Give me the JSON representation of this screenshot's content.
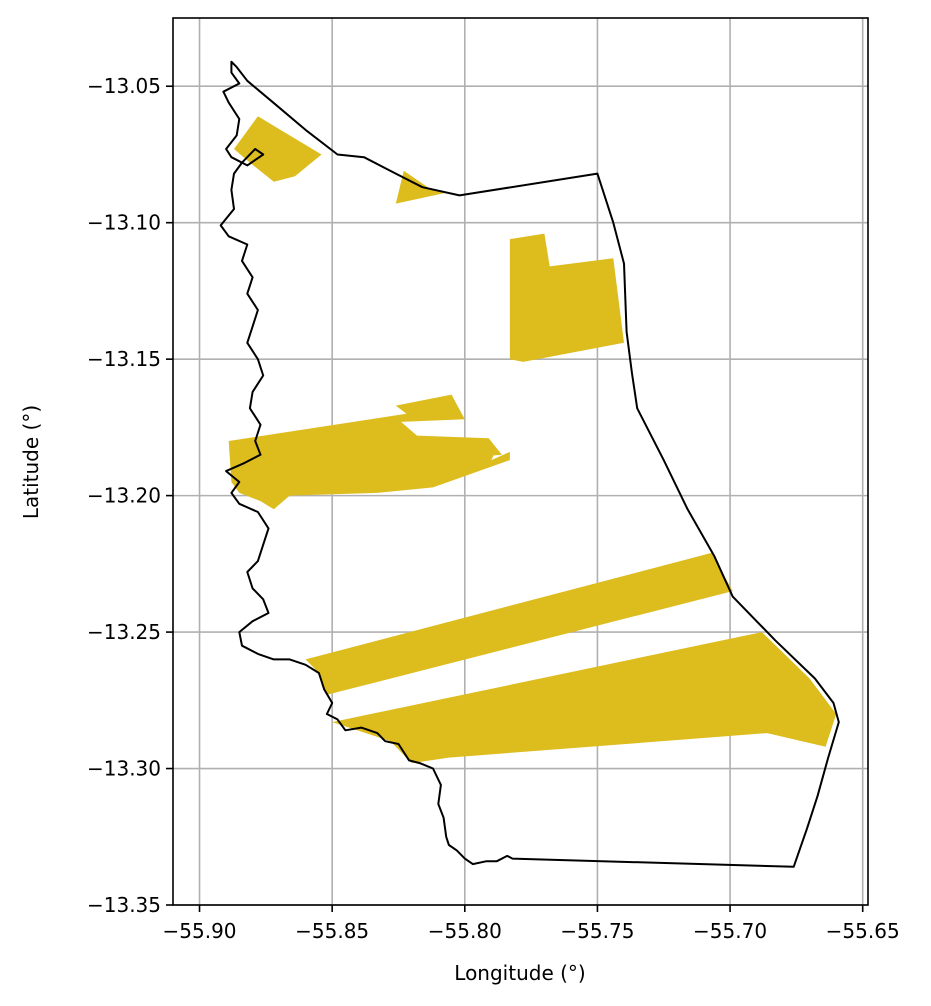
{
  "chart_data": {
    "type": "map",
    "xlabel": "Longitude (°)",
    "ylabel": "Latitude (°)",
    "xlim": [
      -55.91,
      -55.648
    ],
    "ylim": [
      -13.35,
      -13.025
    ],
    "xticks": [
      -55.9,
      -55.85,
      -55.8,
      -55.75,
      -55.7,
      -55.65
    ],
    "xtick_labels": [
      "−55.90",
      "−55.85",
      "−55.80",
      "−55.75",
      "−55.70",
      "−55.65"
    ],
    "yticks": [
      -13.05,
      -13.1,
      -13.15,
      -13.2,
      -13.25,
      -13.3,
      -13.35
    ],
    "ytick_labels": [
      "−13.05",
      "−13.10",
      "−13.15",
      "−13.20",
      "−13.25",
      "−13.30",
      "−13.35"
    ],
    "grid": true,
    "colors": {
      "fill": "#ddbc1e",
      "outline": "#000000",
      "grid": "#b0b0b0"
    },
    "outline": [
      [
        -55.888,
        -13.041
      ],
      [
        -55.886,
        -13.043
      ],
      [
        -55.882,
        -13.048
      ],
      [
        -55.871,
        -13.057
      ],
      [
        -55.86,
        -13.066
      ],
      [
        -55.848,
        -13.075
      ],
      [
        -55.838,
        -13.076
      ],
      [
        -55.826,
        -13.082
      ],
      [
        -55.816,
        -13.087
      ],
      [
        -55.802,
        -13.09
      ],
      [
        -55.75,
        -13.082
      ],
      [
        -55.744,
        -13.1
      ],
      [
        -55.74,
        -13.115
      ],
      [
        -55.739,
        -13.14
      ],
      [
        -55.737,
        -13.155
      ],
      [
        -55.735,
        -13.168
      ],
      [
        -55.725,
        -13.187
      ],
      [
        -55.716,
        -13.205
      ],
      [
        -55.706,
        -13.222
      ],
      [
        -55.699,
        -13.237
      ],
      [
        -55.683,
        -13.253
      ],
      [
        -55.668,
        -13.267
      ],
      [
        -55.661,
        -13.276
      ],
      [
        -55.659,
        -13.283
      ],
      [
        -55.663,
        -13.296
      ],
      [
        -55.667,
        -13.31
      ],
      [
        -55.671,
        -13.322
      ],
      [
        -55.676,
        -13.336
      ],
      [
        -55.782,
        -13.333
      ],
      [
        -55.784,
        -13.332
      ],
      [
        -55.788,
        -13.334
      ],
      [
        -55.792,
        -13.334
      ],
      [
        -55.797,
        -13.335
      ],
      [
        -55.8,
        -13.333
      ],
      [
        -55.803,
        -13.33
      ],
      [
        -55.806,
        -13.328
      ],
      [
        -55.807,
        -13.325
      ],
      [
        -55.808,
        -13.318
      ],
      [
        -55.81,
        -13.313
      ],
      [
        -55.809,
        -13.306
      ],
      [
        -55.812,
        -13.3
      ],
      [
        -55.817,
        -13.298
      ],
      [
        -55.821,
        -13.297
      ],
      [
        -55.825,
        -13.291
      ],
      [
        -55.83,
        -13.29
      ],
      [
        -55.833,
        -13.287
      ],
      [
        -55.839,
        -13.285
      ],
      [
        -55.845,
        -13.286
      ],
      [
        -55.848,
        -13.282
      ],
      [
        -55.852,
        -13.28
      ],
      [
        -55.85,
        -13.276
      ],
      [
        -55.853,
        -13.271
      ],
      [
        -55.855,
        -13.265
      ],
      [
        -55.86,
        -13.262
      ],
      [
        -55.866,
        -13.26
      ],
      [
        -55.872,
        -13.26
      ],
      [
        -55.878,
        -13.258
      ],
      [
        -55.884,
        -13.255
      ],
      [
        -55.885,
        -13.25
      ],
      [
        -55.88,
        -13.246
      ],
      [
        -55.874,
        -13.243
      ],
      [
        -55.876,
        -13.238
      ],
      [
        -55.88,
        -13.234
      ],
      [
        -55.882,
        -13.228
      ],
      [
        -55.878,
        -13.224
      ],
      [
        -55.876,
        -13.218
      ],
      [
        -55.874,
        -13.212
      ],
      [
        -55.878,
        -13.206
      ],
      [
        -55.885,
        -13.203
      ],
      [
        -55.888,
        -13.199
      ],
      [
        -55.885,
        -13.195
      ],
      [
        -55.89,
        -13.191
      ],
      [
        -55.883,
        -13.188
      ],
      [
        -55.877,
        -13.185
      ],
      [
        -55.879,
        -13.18
      ],
      [
        -55.877,
        -13.174
      ],
      [
        -55.881,
        -13.168
      ],
      [
        -55.88,
        -13.162
      ],
      [
        -55.876,
        -13.156
      ],
      [
        -55.878,
        -13.15
      ],
      [
        -55.882,
        -13.144
      ],
      [
        -55.88,
        -13.138
      ],
      [
        -55.878,
        -13.132
      ],
      [
        -55.882,
        -13.126
      ],
      [
        -55.88,
        -13.12
      ],
      [
        -55.884,
        -13.114
      ],
      [
        -55.882,
        -13.108
      ],
      [
        -55.889,
        -13.105
      ],
      [
        -55.892,
        -13.101
      ],
      [
        -55.887,
        -13.095
      ],
      [
        -55.888,
        -13.088
      ],
      [
        -55.887,
        -13.082
      ],
      [
        -55.884,
        -13.078
      ],
      [
        -55.879,
        -13.073
      ],
      [
        -55.876,
        -13.075
      ],
      [
        -55.882,
        -13.079
      ],
      [
        -55.888,
        -13.076
      ],
      [
        -55.89,
        -13.073
      ],
      [
        -55.886,
        -13.068
      ],
      [
        -55.885,
        -13.062
      ],
      [
        -55.889,
        -13.056
      ],
      [
        -55.891,
        -13.052
      ],
      [
        -55.885,
        -13.049
      ],
      [
        -55.888,
        -13.045
      ],
      [
        -55.888,
        -13.041
      ]
    ],
    "features": [
      [
        [
          -55.887,
          -13.073
        ],
        [
          -55.878,
          -13.061
        ],
        [
          -55.854,
          -13.075
        ],
        [
          -55.864,
          -13.083
        ],
        [
          -55.872,
          -13.085
        ],
        [
          -55.881,
          -13.078
        ]
      ],
      [
        [
          -55.823,
          -13.081
        ],
        [
          -55.814,
          -13.087
        ],
        [
          -55.807,
          -13.089
        ],
        [
          -55.826,
          -13.093
        ]
      ],
      [
        [
          -55.783,
          -13.106
        ],
        [
          -55.77,
          -13.104
        ],
        [
          -55.768,
          -13.116
        ],
        [
          -55.744,
          -13.113
        ],
        [
          -55.74,
          -13.144
        ],
        [
          -55.778,
          -13.151
        ],
        [
          -55.783,
          -13.15
        ]
      ],
      [
        [
          -55.889,
          -13.18
        ],
        [
          -55.822,
          -13.17
        ],
        [
          -55.826,
          -13.167
        ],
        [
          -55.805,
          -13.163
        ],
        [
          -55.8,
          -13.172
        ],
        [
          -55.824,
          -13.173
        ],
        [
          -55.818,
          -13.178
        ],
        [
          -55.791,
          -13.179
        ],
        [
          -55.786,
          -13.185
        ],
        [
          -55.85,
          -13.19
        ],
        [
          -55.788,
          -13.183
        ],
        [
          -55.79,
          -13.187
        ],
        [
          -55.783,
          -13.184
        ],
        [
          -55.783,
          -13.187
        ],
        [
          -55.812,
          -13.197
        ],
        [
          -55.833,
          -13.199
        ],
        [
          -55.866,
          -13.2
        ],
        [
          -55.872,
          -13.205
        ],
        [
          -55.877,
          -13.202
        ],
        [
          -55.885,
          -13.199
        ],
        [
          -55.888,
          -13.195
        ]
      ],
      [
        [
          -55.86,
          -13.26
        ],
        [
          -55.707,
          -13.221
        ],
        [
          -55.699,
          -13.235
        ],
        [
          -55.852,
          -13.273
        ],
        [
          -55.855,
          -13.265
        ]
      ],
      [
        [
          -55.85,
          -13.283
        ],
        [
          -55.688,
          -13.25
        ],
        [
          -55.67,
          -13.267
        ],
        [
          -55.66,
          -13.28
        ],
        [
          -55.664,
          -13.292
        ],
        [
          -55.686,
          -13.287
        ],
        [
          -55.806,
          -13.296
        ],
        [
          -55.82,
          -13.298
        ],
        [
          -55.828,
          -13.29
        ]
      ]
    ]
  }
}
